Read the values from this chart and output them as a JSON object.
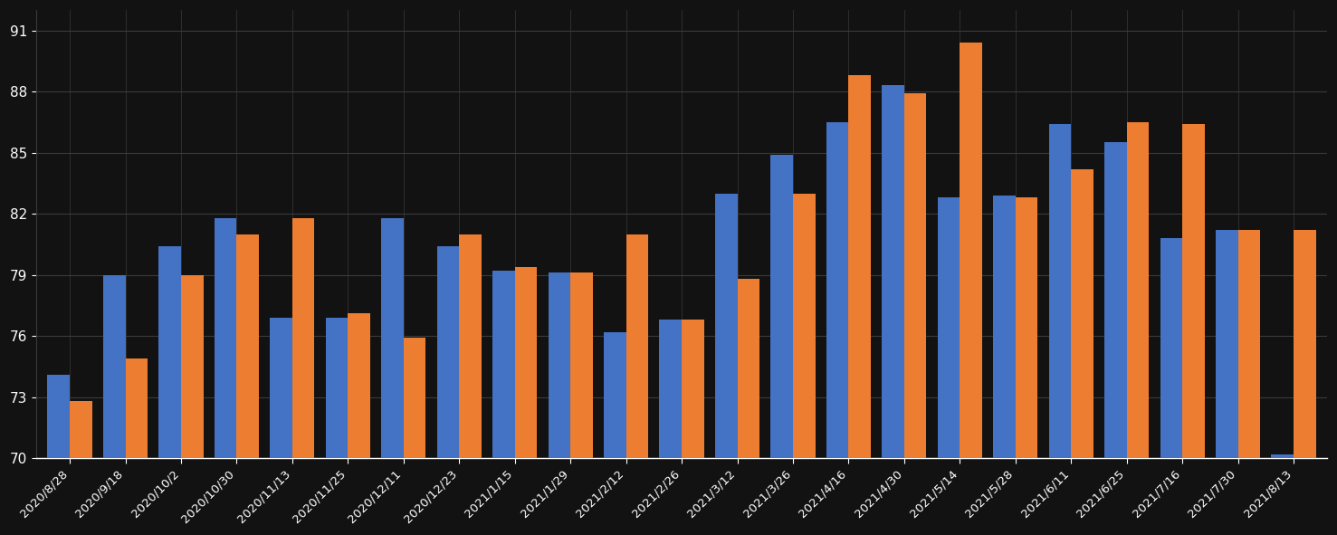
{
  "dates": [
    "2020/8/28",
    "2020/9/18",
    "2020/10/2",
    "2020/10/30",
    "2020/11/13",
    "2020/11/25",
    "2020/12/11",
    "2020/12/23",
    "2021/1/15",
    "2021/1/29",
    "2021/2/12",
    "2021/2/26",
    "2021/3/12",
    "2021/3/26",
    "2021/4/16",
    "2021/4/30",
    "2021/5/14",
    "2021/5/28",
    "2021/6/11",
    "2021/6/25",
    "2021/7/16",
    "2021/7/30",
    "2021/8/13"
  ],
  "blue_values": [
    74.1,
    79.0,
    80.4,
    81.8,
    76.9,
    76.9,
    81.8,
    80.4,
    79.2,
    79.1,
    76.2,
    76.8,
    83.0,
    84.9,
    86.5,
    88.3,
    82.8,
    82.9,
    86.4,
    85.5,
    80.8,
    81.2,
    70.2
  ],
  "orange_values": [
    72.8,
    74.9,
    79.0,
    81.0,
    81.8,
    77.1,
    75.9,
    81.0,
    79.4,
    79.1,
    81.0,
    76.8,
    78.8,
    83.0,
    88.8,
    87.9,
    90.4,
    82.8,
    84.2,
    86.5,
    86.4,
    81.2,
    81.2
  ],
  "bar_color_blue": "#4472C4",
  "bar_color_orange": "#ED7D31",
  "background_color": "#121212",
  "text_color": "#FFFFFF",
  "grid_color": "#3A3A3A",
  "ylim_min": 70,
  "ylim_max": 92,
  "yticks": [
    70,
    73,
    76,
    79,
    82,
    85,
    88,
    91
  ],
  "bar_bottom": 70,
  "bar_width": 0.4,
  "figwidth": 14.77,
  "figheight": 5.91,
  "dpi": 100
}
